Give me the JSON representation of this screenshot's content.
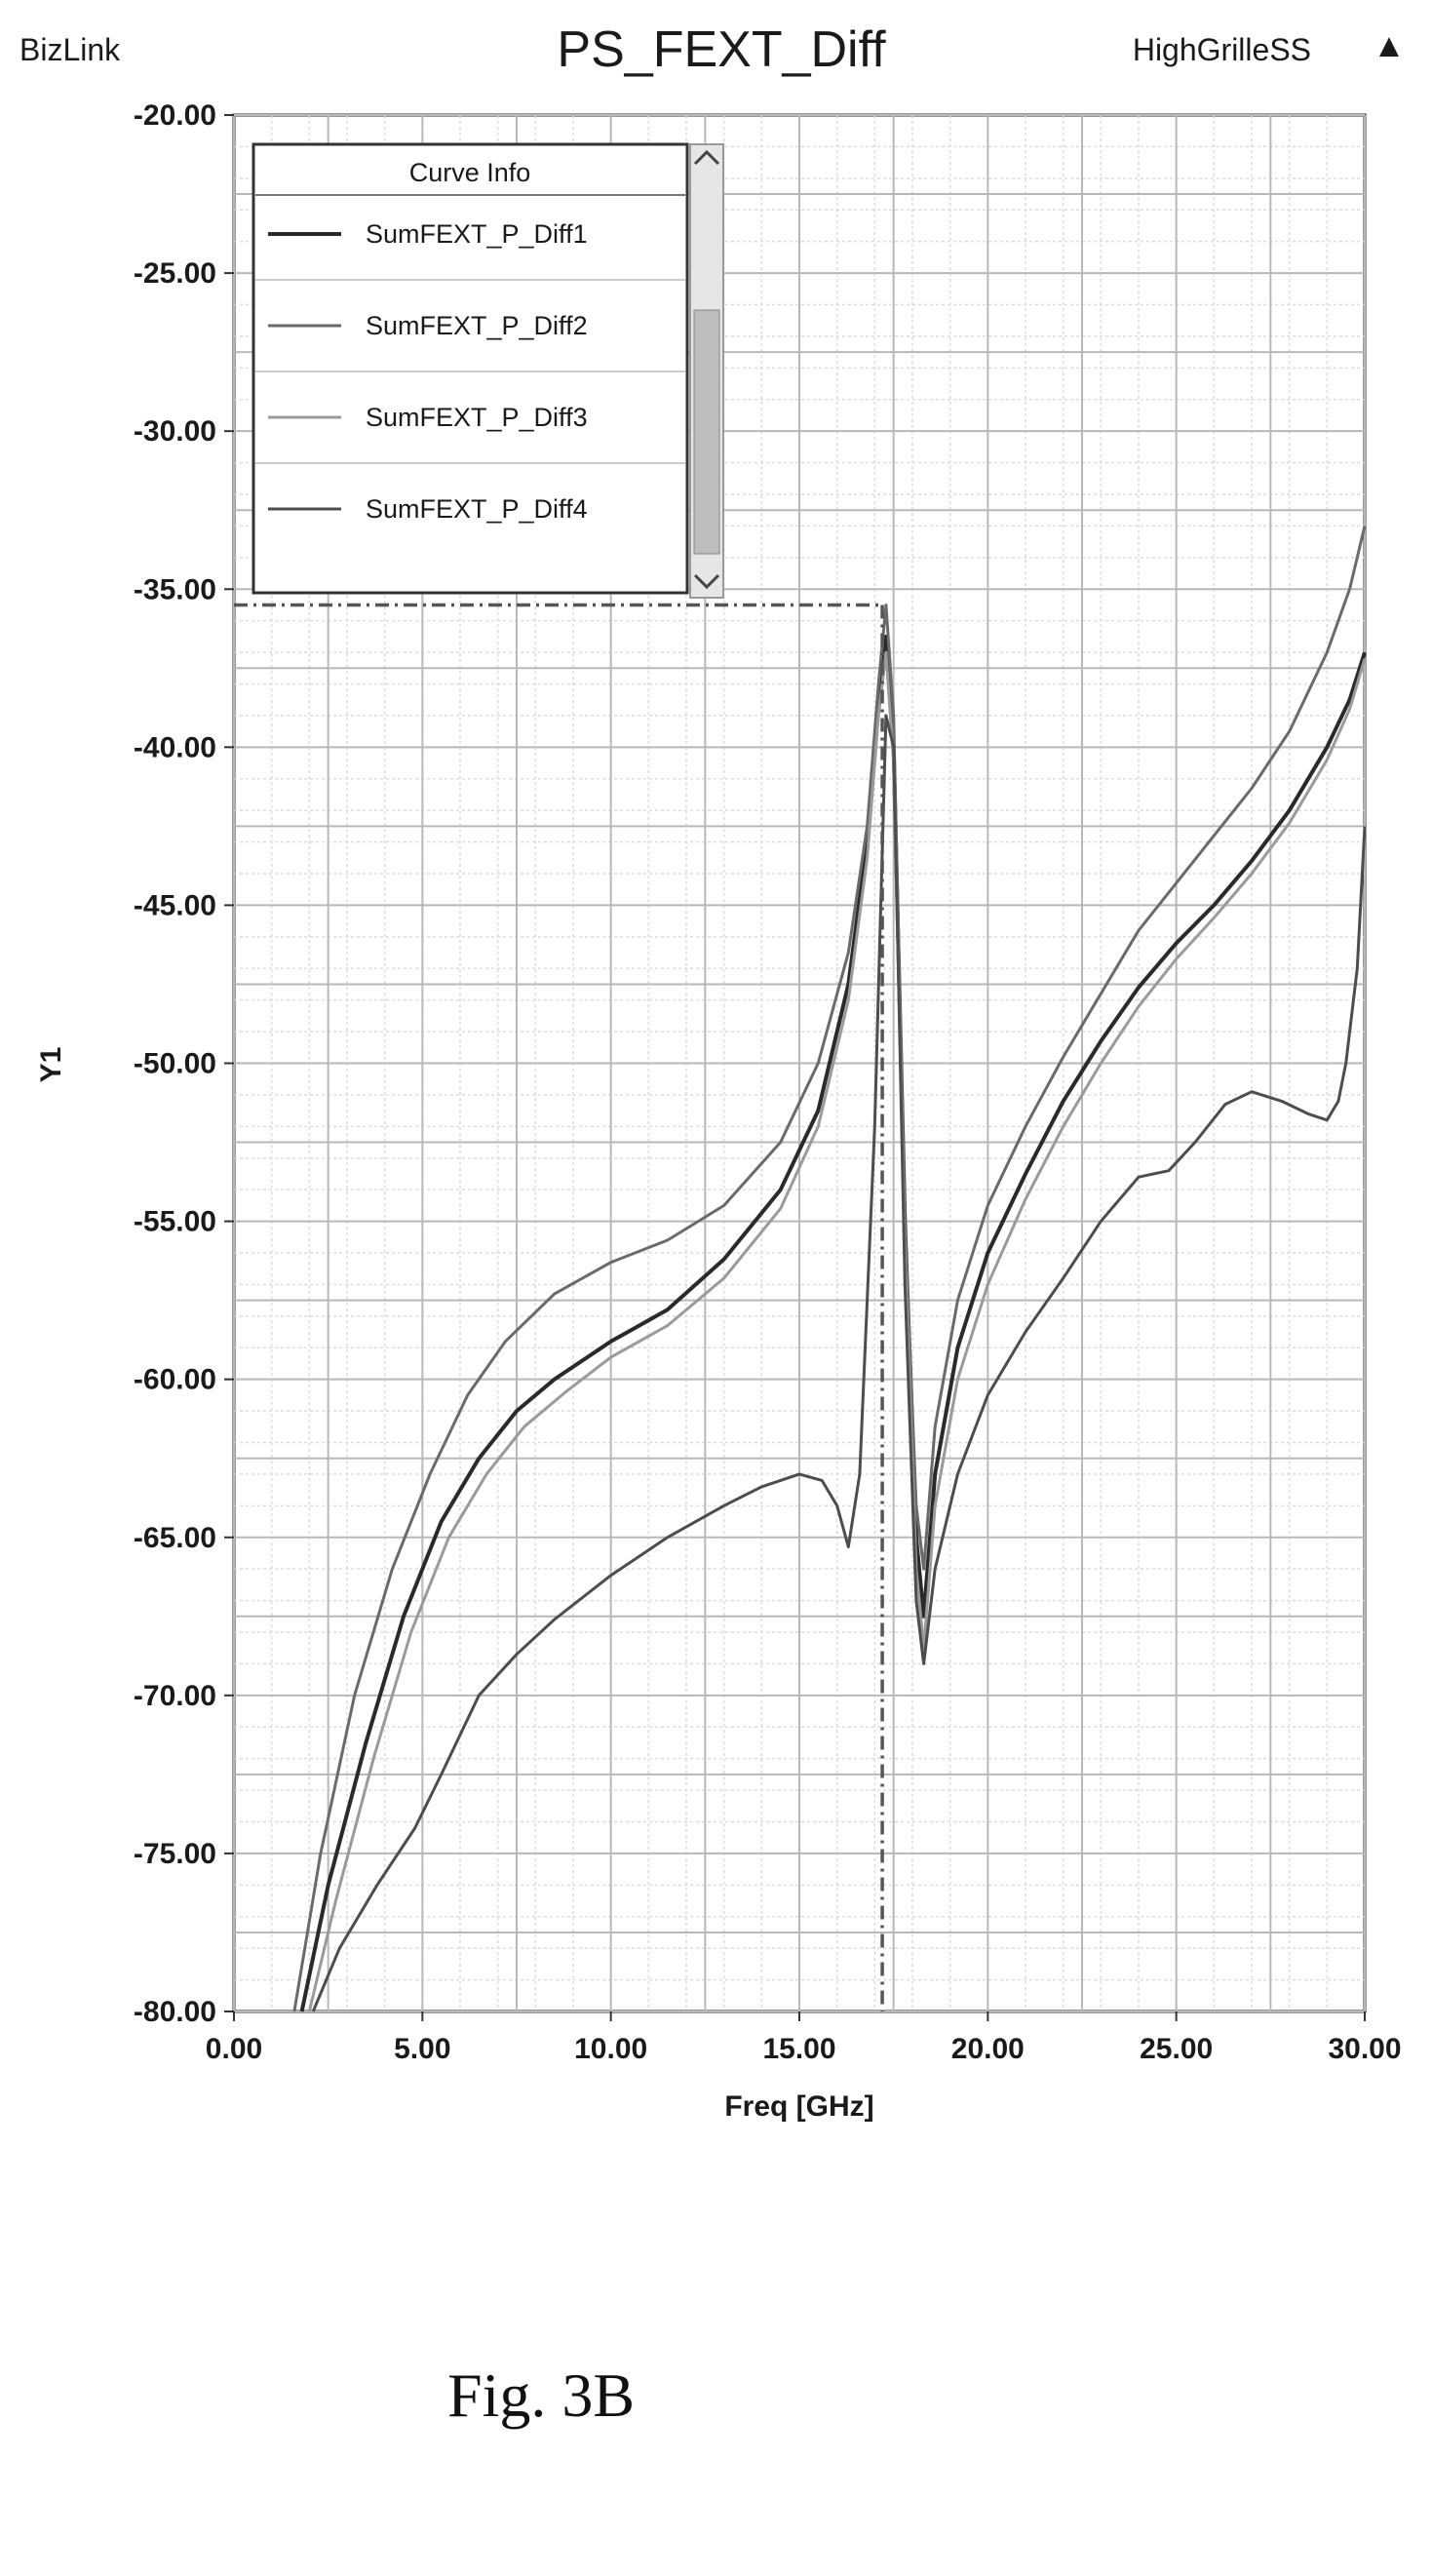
{
  "header": {
    "brand": "BizLink",
    "project": "HighGrilleSS",
    "arrow": "▲"
  },
  "legend": {
    "title": "Curve Info"
  },
  "caption": "Fig. 3B",
  "colors": {
    "series": [
      "#2a2a2a",
      "#6a6a6a",
      "#9a9a9a",
      "#4d4d4d"
    ],
    "grid_major": "#b8b8b8",
    "grid_minor": "#dcdcdc",
    "marker": "#555555"
  },
  "chart_data": {
    "type": "line",
    "title": "PS_FEXT_Diff",
    "xlabel": "Freq [GHz]",
    "ylabel": "Y1",
    "xlim": [
      0,
      30
    ],
    "ylim": [
      -80,
      -20
    ],
    "x_ticks": [
      "0.00",
      "5.00",
      "10.00",
      "15.00",
      "20.00",
      "25.00",
      "30.00"
    ],
    "y_ticks": [
      "-20.00",
      "-25.00",
      "-30.00",
      "-35.00",
      "-40.00",
      "-45.00",
      "-50.00",
      "-55.00",
      "-60.00",
      "-65.00",
      "-70.00",
      "-75.00",
      "-80.00"
    ],
    "grid": true,
    "legend_position": "top-left",
    "marker_line": {
      "x": 17.2,
      "y": -35.5
    },
    "series": [
      {
        "name": "SumFEXT_P_Diff1",
        "points": [
          [
            1.8,
            -80
          ],
          [
            2.5,
            -76
          ],
          [
            3.5,
            -71.5
          ],
          [
            4.5,
            -67.5
          ],
          [
            5.5,
            -64.5
          ],
          [
            6.5,
            -62.5
          ],
          [
            7.5,
            -61
          ],
          [
            8.5,
            -60
          ],
          [
            10,
            -58.8
          ],
          [
            11.5,
            -57.8
          ],
          [
            13,
            -56.2
          ],
          [
            14.5,
            -54
          ],
          [
            15.5,
            -51.5
          ],
          [
            16.3,
            -47.5
          ],
          [
            16.8,
            -43
          ],
          [
            17.1,
            -38.5
          ],
          [
            17.3,
            -36.5
          ],
          [
            17.5,
            -40
          ],
          [
            17.8,
            -55
          ],
          [
            18.1,
            -65
          ],
          [
            18.3,
            -67.5
          ],
          [
            18.6,
            -63
          ],
          [
            19.2,
            -59
          ],
          [
            20,
            -56
          ],
          [
            21,
            -53.5
          ],
          [
            22,
            -51.2
          ],
          [
            23,
            -49.3
          ],
          [
            24,
            -47.6
          ],
          [
            25,
            -46.2
          ],
          [
            26,
            -45
          ],
          [
            27,
            -43.6
          ],
          [
            28,
            -42
          ],
          [
            29,
            -40
          ],
          [
            29.6,
            -38.5
          ],
          [
            30,
            -37
          ]
        ]
      },
      {
        "name": "SumFEXT_P_Diff2",
        "points": [
          [
            1.6,
            -80
          ],
          [
            2.3,
            -75
          ],
          [
            3.2,
            -70
          ],
          [
            4.2,
            -66
          ],
          [
            5.2,
            -63
          ],
          [
            6.2,
            -60.5
          ],
          [
            7.2,
            -58.8
          ],
          [
            8.5,
            -57.3
          ],
          [
            10,
            -56.3
          ],
          [
            11.5,
            -55.6
          ],
          [
            13,
            -54.5
          ],
          [
            14.5,
            -52.5
          ],
          [
            15.5,
            -50
          ],
          [
            16.3,
            -46.5
          ],
          [
            16.8,
            -42.5
          ],
          [
            17.1,
            -38
          ],
          [
            17.3,
            -35.5
          ],
          [
            17.5,
            -39
          ],
          [
            17.8,
            -55
          ],
          [
            18.1,
            -64
          ],
          [
            18.3,
            -66
          ],
          [
            18.6,
            -61.5
          ],
          [
            19.2,
            -57.5
          ],
          [
            20,
            -54.5
          ],
          [
            21,
            -52
          ],
          [
            22,
            -49.8
          ],
          [
            23,
            -47.8
          ],
          [
            24,
            -45.8
          ],
          [
            25,
            -44.3
          ],
          [
            26,
            -42.8
          ],
          [
            27,
            -41.3
          ],
          [
            28,
            -39.5
          ],
          [
            29,
            -37
          ],
          [
            29.6,
            -35
          ],
          [
            30,
            -33
          ]
        ]
      },
      {
        "name": "SumFEXT_P_Diff3",
        "points": [
          [
            2,
            -80
          ],
          [
            2.7,
            -76.5
          ],
          [
            3.7,
            -72
          ],
          [
            4.7,
            -68
          ],
          [
            5.7,
            -65
          ],
          [
            6.7,
            -63
          ],
          [
            7.7,
            -61.5
          ],
          [
            8.8,
            -60.4
          ],
          [
            10,
            -59.3
          ],
          [
            11.5,
            -58.3
          ],
          [
            13,
            -56.8
          ],
          [
            14.5,
            -54.6
          ],
          [
            15.5,
            -52
          ],
          [
            16.3,
            -48
          ],
          [
            16.8,
            -43.5
          ],
          [
            17.1,
            -39
          ],
          [
            17.3,
            -37
          ],
          [
            17.5,
            -40.5
          ],
          [
            17.8,
            -56
          ],
          [
            18.1,
            -66
          ],
          [
            18.3,
            -68.5
          ],
          [
            18.6,
            -64
          ],
          [
            19.2,
            -60
          ],
          [
            20,
            -57
          ],
          [
            21,
            -54.3
          ],
          [
            22,
            -52
          ],
          [
            23,
            -50
          ],
          [
            24,
            -48.2
          ],
          [
            25,
            -46.7
          ],
          [
            26,
            -45.4
          ],
          [
            27,
            -44
          ],
          [
            28,
            -42.4
          ],
          [
            29,
            -40.4
          ],
          [
            29.6,
            -38.8
          ],
          [
            30,
            -37.2
          ]
        ]
      },
      {
        "name": "SumFEXT_P_Diff4",
        "points": [
          [
            2.1,
            -80
          ],
          [
            2.8,
            -78
          ],
          [
            3.8,
            -76
          ],
          [
            4.8,
            -74.2
          ],
          [
            5.5,
            -72.5
          ],
          [
            6.5,
            -70
          ],
          [
            7.5,
            -68.7
          ],
          [
            8.5,
            -67.6
          ],
          [
            10,
            -66.2
          ],
          [
            11.5,
            -65
          ],
          [
            13,
            -64
          ],
          [
            14,
            -63.4
          ],
          [
            15,
            -63
          ],
          [
            15.6,
            -63.2
          ],
          [
            16,
            -64
          ],
          [
            16.3,
            -65.3
          ],
          [
            16.6,
            -63
          ],
          [
            17,
            -52
          ],
          [
            17.3,
            -39
          ],
          [
            17.5,
            -40
          ],
          [
            17.8,
            -57
          ],
          [
            18.1,
            -67
          ],
          [
            18.3,
            -69
          ],
          [
            18.6,
            -66
          ],
          [
            19.2,
            -63
          ],
          [
            20,
            -60.5
          ],
          [
            21,
            -58.5
          ],
          [
            22,
            -56.8
          ],
          [
            23,
            -55
          ],
          [
            24,
            -53.6
          ],
          [
            24.8,
            -53.4
          ],
          [
            25.5,
            -52.5
          ],
          [
            26.3,
            -51.3
          ],
          [
            27,
            -50.9
          ],
          [
            27.8,
            -51.2
          ],
          [
            28.5,
            -51.6
          ],
          [
            29,
            -51.8
          ],
          [
            29.3,
            -51.2
          ],
          [
            29.5,
            -50
          ],
          [
            29.8,
            -47
          ],
          [
            30,
            -42.5
          ]
        ]
      }
    ]
  }
}
